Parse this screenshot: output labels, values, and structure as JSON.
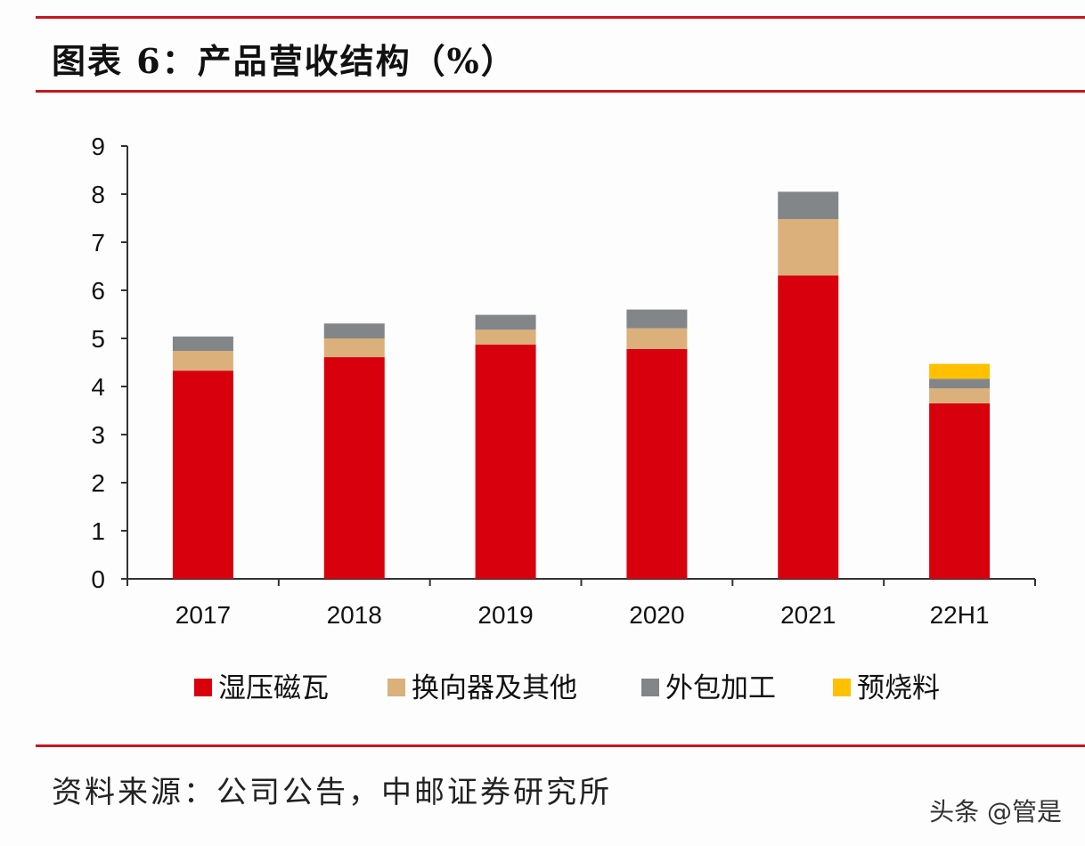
{
  "chart_data": {
    "type": "bar",
    "stacked": true,
    "title": "图表 6：产品营收结构（%）",
    "categories": [
      "2017",
      "2018",
      "2019",
      "2020",
      "2021",
      "22H1"
    ],
    "series": [
      {
        "name": "湿压磁瓦",
        "color": "#d9000d",
        "values": [
          4.33,
          4.61,
          4.87,
          4.78,
          6.31,
          3.65
        ]
      },
      {
        "name": "换向器及其他",
        "color": "#dbb07b",
        "values": [
          0.41,
          0.39,
          0.31,
          0.43,
          1.17,
          0.31
        ]
      },
      {
        "name": "外包加工",
        "color": "#838689",
        "values": [
          0.3,
          0.31,
          0.31,
          0.39,
          0.57,
          0.2
        ]
      },
      {
        "name": "预烧料",
        "color": "#ffc000",
        "values": [
          0,
          0,
          0,
          0,
          0,
          0.31
        ]
      }
    ],
    "ylim": [
      0,
      9
    ],
    "yticks": [
      "0",
      "1",
      "2",
      "3",
      "4",
      "5",
      "6",
      "7",
      "8",
      "9"
    ],
    "xlabel": "",
    "ylabel": "",
    "grid": false,
    "legend_position": "bottom"
  },
  "source": "资料来源：公司公告，中邮证券研究所",
  "watermark": "头条 @管是",
  "accent_color": "#c8161d"
}
